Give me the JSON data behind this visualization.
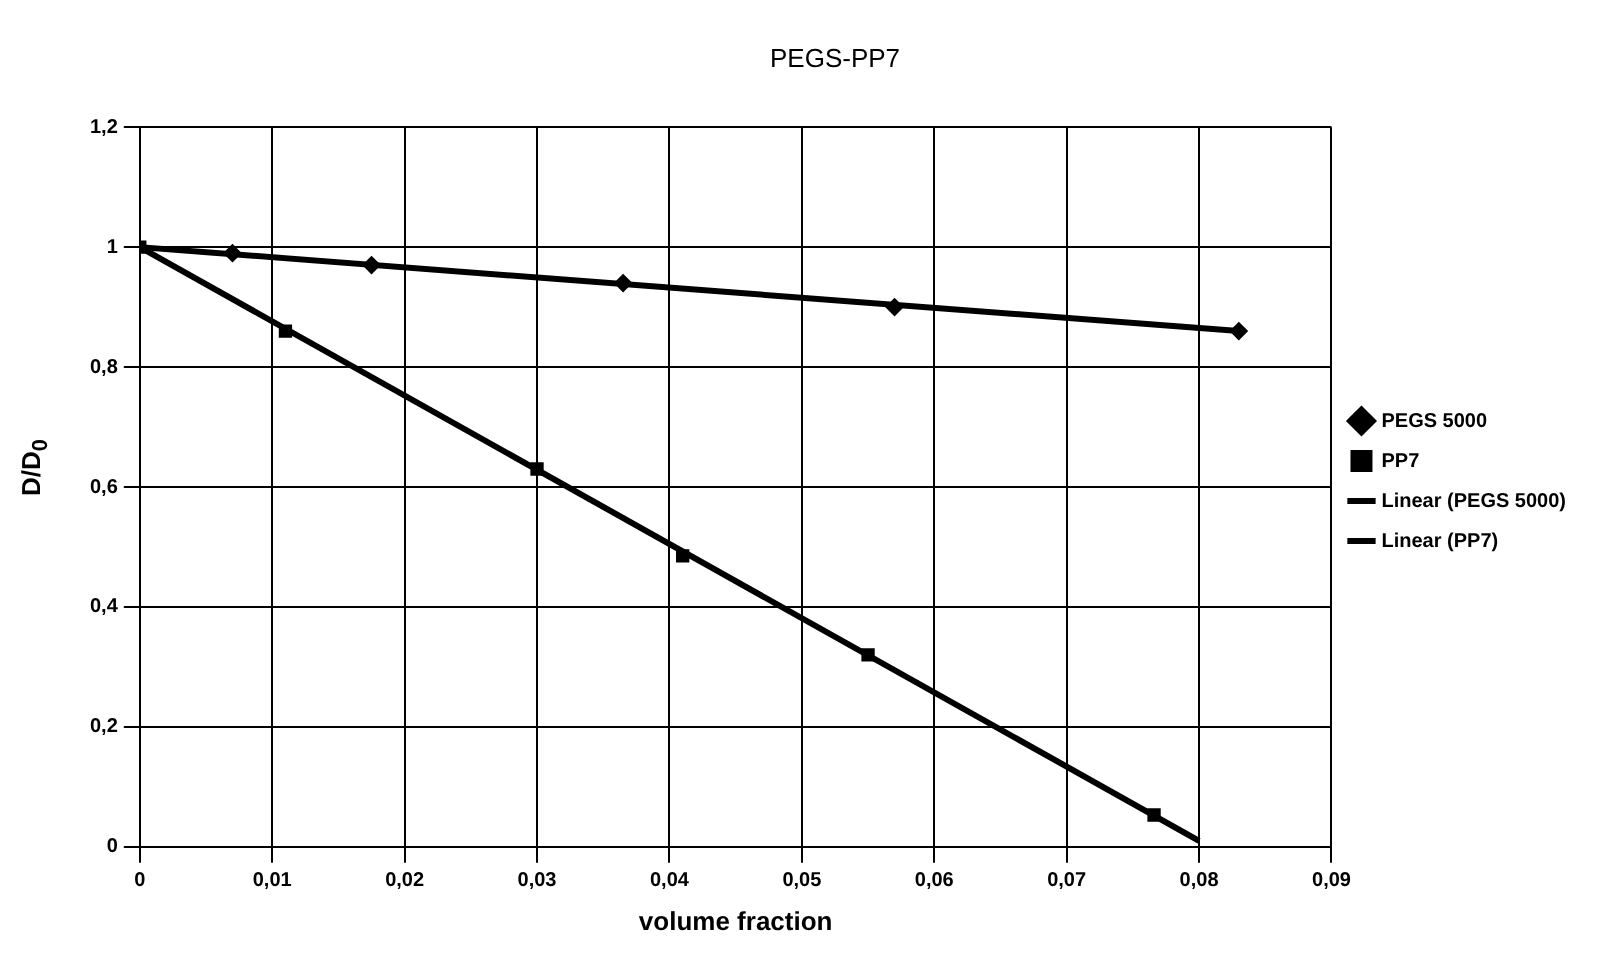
{
  "chart_data": {
    "type": "scatter",
    "title": "PEGS-PP7",
    "xlabel": "volume fraction",
    "ylabel": "D/D$_{0}$",
    "xlim": [
      0,
      0.09
    ],
    "ylim": [
      0,
      1.2
    ],
    "xticks": [
      0,
      {
        "value": 0.01,
        "label": "0,01"
      },
      {
        "value": 0.02,
        "label": "0,02"
      },
      {
        "value": 0.03,
        "label": "0,03"
      },
      {
        "value": 0.04,
        "label": "0,04"
      },
      {
        "value": 0.05,
        "label": "0,05"
      },
      {
        "value": 0.06,
        "label": "0,06"
      },
      {
        "value": 0.07,
        "label": "0,07"
      },
      {
        "value": 0.08,
        "label": "0,08"
      },
      {
        "value": 0.09,
        "label": "0,09"
      }
    ],
    "yticks": [
      0,
      {
        "value": 0.2,
        "label": "0,2"
      },
      {
        "value": 0.4,
        "label": "0,4"
      },
      {
        "value": 0.6,
        "label": "0,6"
      },
      {
        "value": 0.8,
        "label": "0,8"
      },
      1,
      {
        "value": 1.2,
        "label": "1,2"
      }
    ],
    "grid": true,
    "legend": "right",
    "series": [
      {
        "name": "PEGS 5000",
        "marker": "diamond",
        "color": "#000000",
        "x": [
          0.007,
          0.0175,
          0.0365,
          0.057,
          0.083
        ],
        "values": [
          0.99,
          0.97,
          0.94,
          0.9,
          0.86
        ]
      },
      {
        "name": "PP7",
        "marker": "square",
        "color": "#000000",
        "x": [
          0,
          0.011,
          0.03,
          0.041,
          0.055,
          0.0766
        ],
        "values": [
          1,
          0.86,
          0.63,
          0.485,
          0.32,
          0.053
        ]
      },
      {
        "name": "Linear (PEGS 5000)",
        "type": "line",
        "marker": "none",
        "color": "#000000",
        "x": [
          0,
          0.083
        ],
        "values": [
          1,
          0.86
        ]
      },
      {
        "name": "Linear (PP7)",
        "type": "line",
        "marker": "none",
        "color": "#000000",
        "x": [
          0,
          0.08
        ],
        "values": [
          1,
          0.01
        ]
      }
    ]
  }
}
